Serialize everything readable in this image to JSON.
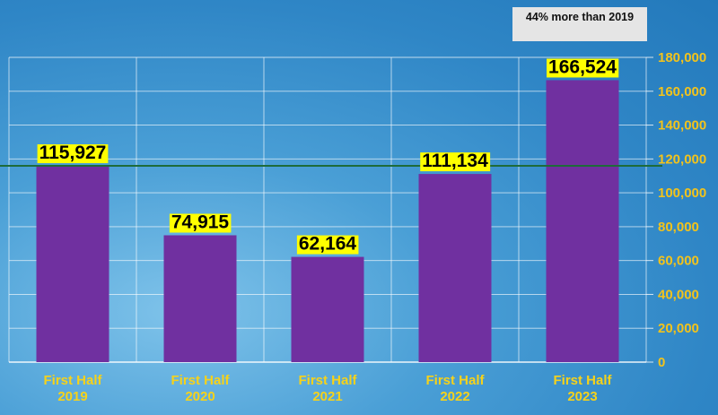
{
  "chart_data": {
    "type": "bar",
    "categories": [
      [
        "First Half",
        "2019"
      ],
      [
        "First Half",
        "2020"
      ],
      [
        "First Half",
        "2021"
      ],
      [
        "First Half",
        "2022"
      ],
      [
        "First Half",
        "2023"
      ]
    ],
    "values": [
      115927,
      74915,
      62164,
      111134,
      166524
    ],
    "data_labels": [
      "115,927",
      "74,915",
      "62,164",
      "111,134",
      "166,524"
    ],
    "ylim": [
      0,
      180000
    ],
    "yticks": [
      0,
      20000,
      40000,
      60000,
      80000,
      100000,
      120000,
      140000,
      160000,
      180000
    ],
    "ytick_labels": [
      "0",
      "20,000",
      "40,000",
      "60,000",
      "80,000",
      "100,000",
      "120,000",
      "140,000",
      "160,000",
      "180,000"
    ],
    "y_axis_side": "right",
    "grid": true,
    "reference_line": {
      "value": 115927,
      "color": "#1e6b3a"
    },
    "annotation": "44% more than 2019",
    "colors": {
      "bar": "#7030a0",
      "data_label_bg": "#ffff00",
      "tick": "#f3c31b",
      "category": "#f6d21a",
      "grid": "#ffffff"
    }
  }
}
